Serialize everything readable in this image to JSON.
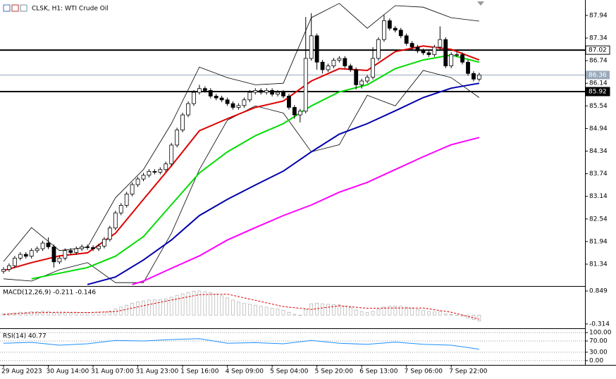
{
  "chart_data": {
    "type": "candlestick",
    "title": "CLSK, H1:  WTI Crude Oil",
    "categories": [
      "29 Aug 2023",
      null,
      null,
      null,
      null,
      null,
      null,
      null,
      "30 Aug 14:00",
      null,
      null,
      null,
      null,
      null,
      null,
      null,
      "31 Aug 07:00",
      null,
      null,
      null,
      null,
      null,
      null,
      null,
      "31 Aug 23:00",
      null,
      null,
      null,
      null,
      null,
      null,
      null,
      "1 Sep 16:00",
      null,
      null,
      null,
      null,
      null,
      null,
      null,
      "4 Sep 09:00",
      null,
      null,
      null,
      null,
      null,
      null,
      null,
      "5 Sep 04:00",
      null,
      null,
      null,
      null,
      null,
      null,
      null,
      "5 Sep 20:00",
      null,
      null,
      null,
      null,
      null,
      null,
      null,
      "6 Sep 13:00",
      null,
      null,
      null,
      null,
      null,
      null,
      null,
      "7 Sep 06:00",
      null,
      null,
      null,
      null,
      null,
      null,
      null,
      "7 Sep 22:00",
      null,
      null,
      null,
      null,
      null
    ],
    "open": [
      81.15,
      81.2,
      81.3,
      81.5,
      81.6,
      81.55,
      81.7,
      81.75,
      81.9,
      81.8,
      81.4,
      81.5,
      81.7,
      81.65,
      81.75,
      81.8,
      81.78,
      81.75,
      81.82,
      82.0,
      82.3,
      82.7,
      82.9,
      83.2,
      83.45,
      83.6,
      83.7,
      83.8,
      83.78,
      83.85,
      84.0,
      84.5,
      84.9,
      85.3,
      85.6,
      85.9,
      86.0,
      85.95,
      85.8,
      85.75,
      85.7,
      85.6,
      85.5,
      85.55,
      85.7,
      85.9,
      85.95,
      85.9,
      85.95,
      85.85,
      85.9,
      85.8,
      85.5,
      85.3,
      85.4,
      86.8,
      87.4,
      86.7,
      86.5,
      86.6,
      86.75,
      86.8,
      86.6,
      86.5,
      86.1,
      86.2,
      86.3,
      86.8,
      87.3,
      87.8,
      87.6,
      87.55,
      87.4,
      87.2,
      87.1,
      87.0,
      86.95,
      86.9,
      87.1,
      87.3,
      86.6,
      86.9,
      86.9,
      86.7,
      86.4,
      86.25
    ],
    "high": [
      81.26,
      81.36,
      81.56,
      81.66,
      81.66,
      81.76,
      81.81,
      81.96,
      82.05,
      81.86,
      81.56,
      81.76,
      81.76,
      81.81,
      81.86,
      81.86,
      81.84,
      81.88,
      82.06,
      82.36,
      82.76,
      82.96,
      83.26,
      83.51,
      83.66,
      83.76,
      83.86,
      83.86,
      83.91,
      84.06,
      84.56,
      84.96,
      85.36,
      85.66,
      85.96,
      86.1,
      86.06,
      86.01,
      85.86,
      85.81,
      85.76,
      85.66,
      85.61,
      85.76,
      85.96,
      86.01,
      86.01,
      86.01,
      86.01,
      85.96,
      85.96,
      85.86,
      85.56,
      85.46,
      87.9,
      88.0,
      87.46,
      86.76,
      86.66,
      86.81,
      86.86,
      86.86,
      86.66,
      86.56,
      86.26,
      86.36,
      87.1,
      87.36,
      87.95,
      87.86,
      87.66,
      87.61,
      87.46,
      87.26,
      87.16,
      87.06,
      87.01,
      87.16,
      87.65,
      87.36,
      86.96,
      86.96,
      86.96,
      86.76,
      86.46,
      86.42
    ],
    "low": [
      81.09,
      81.14,
      81.24,
      81.44,
      81.49,
      81.49,
      81.64,
      81.69,
      81.74,
      81.25,
      81.34,
      81.44,
      81.59,
      81.59,
      81.69,
      81.72,
      81.69,
      81.69,
      81.76,
      81.94,
      82.24,
      82.64,
      82.84,
      83.14,
      83.39,
      83.54,
      83.64,
      83.72,
      83.72,
      83.79,
      83.94,
      84.44,
      84.84,
      85.24,
      85.54,
      85.84,
      85.89,
      85.74,
      85.69,
      85.64,
      85.54,
      85.44,
      85.44,
      85.49,
      85.64,
      85.84,
      85.84,
      85.84,
      85.79,
      85.79,
      85.74,
      85.44,
      85.2,
      85.1,
      85.34,
      86.74,
      86.5,
      86.4,
      86.44,
      86.54,
      86.69,
      86.54,
      86.44,
      85.98,
      86.0,
      86.14,
      86.24,
      86.74,
      87.24,
      87.54,
      87.49,
      87.34,
      87.14,
      87.04,
      86.94,
      86.89,
      86.84,
      86.84,
      87.04,
      86.54,
      86.54,
      86.84,
      86.64,
      86.34,
      86.19,
      86.19
    ],
    "close": [
      81.2,
      81.3,
      81.5,
      81.6,
      81.55,
      81.7,
      81.75,
      81.9,
      81.8,
      81.4,
      81.5,
      81.7,
      81.65,
      81.75,
      81.8,
      81.78,
      81.75,
      81.82,
      82.0,
      82.3,
      82.7,
      82.9,
      83.2,
      83.45,
      83.6,
      83.7,
      83.8,
      83.78,
      83.85,
      84.0,
      84.5,
      84.9,
      85.3,
      85.6,
      85.9,
      86.0,
      85.95,
      85.8,
      85.75,
      85.7,
      85.6,
      85.5,
      85.55,
      85.7,
      85.9,
      85.95,
      85.9,
      85.95,
      85.85,
      85.9,
      85.8,
      85.5,
      85.3,
      85.4,
      86.8,
      87.4,
      86.7,
      86.5,
      86.6,
      86.75,
      86.8,
      86.6,
      86.5,
      86.1,
      86.2,
      86.3,
      86.8,
      87.3,
      87.8,
      87.6,
      87.55,
      87.4,
      87.2,
      87.1,
      87.0,
      86.95,
      86.9,
      87.1,
      87.3,
      86.6,
      86.9,
      86.9,
      86.7,
      86.4,
      86.25,
      86.36
    ],
    "series": [
      {
        "color": "#000000",
        "x": [
          0,
          5,
          10,
          15,
          20,
          25,
          30,
          35,
          40,
          45,
          50,
          55,
          60,
          65,
          70,
          75,
          80,
          85
        ],
        "values": [
          81.41,
          82.31,
          81.7,
          81.79,
          83.1,
          83.85,
          85.07,
          86.57,
          86.29,
          86.1,
          86.14,
          87.88,
          88.26,
          87.6,
          88.2,
          88.16,
          87.88,
          87.79
        ]
      },
      {
        "color": "#000000",
        "x": [
          0,
          5,
          10,
          15,
          20,
          25,
          30,
          35,
          40,
          45,
          50,
          55,
          60,
          65,
          70,
          75,
          80,
          85
        ],
        "values": [
          80.95,
          80.89,
          81.19,
          81.38,
          80.85,
          80.85,
          82.16,
          83.85,
          85.16,
          85.54,
          85.35,
          84.32,
          84.51,
          85.82,
          85.54,
          86.48,
          86.29,
          85.76
        ]
      },
      {
        "color": "#ff00ff",
        "x": [
          23,
          25,
          30,
          35,
          40,
          45,
          50,
          55,
          60,
          65,
          70,
          75,
          80,
          85
        ],
        "values": [
          80.8,
          80.89,
          81.23,
          81.56,
          81.98,
          82.31,
          82.63,
          82.91,
          83.25,
          83.51,
          83.85,
          84.19,
          84.51,
          84.7
        ]
      },
      {
        "color": "#0000aa",
        "x": [
          15,
          20,
          25,
          30,
          35,
          40,
          45,
          50,
          55,
          60,
          65,
          70,
          75,
          80,
          85
        ],
        "values": [
          80.8,
          81.0,
          81.45,
          81.98,
          82.63,
          83.06,
          83.44,
          83.81,
          84.32,
          84.79,
          85.07,
          85.41,
          85.76,
          86.01,
          86.14
        ]
      },
      {
        "color": "#00dd00",
        "x": [
          5,
          10,
          15,
          20,
          25,
          30,
          35,
          40,
          45,
          50,
          55,
          60,
          65,
          70,
          75,
          80,
          85
        ],
        "values": [
          80.95,
          81.1,
          81.25,
          81.55,
          82.07,
          82.92,
          83.76,
          84.32,
          84.75,
          85.07,
          85.54,
          85.91,
          86.1,
          86.53,
          86.76,
          86.89,
          86.7
        ]
      },
      {
        "color": "#dd0000",
        "x": [
          0,
          5,
          10,
          15,
          20,
          25,
          30,
          35,
          40,
          45,
          50,
          55,
          60,
          65,
          70,
          75,
          80,
          85
        ],
        "values": [
          81.17,
          81.38,
          81.56,
          81.64,
          82.16,
          83.06,
          83.95,
          84.88,
          85.2,
          85.5,
          85.67,
          86.2,
          86.53,
          86.48,
          86.98,
          87.13,
          87.04,
          86.76
        ]
      }
    ],
    "levels": [
      87.02,
      85.92
    ],
    "current_price": 86.36,
    "ylim": [
      80.76,
      88.35
    ],
    "yticks": [
      87.94,
      87.34,
      86.74,
      86.14,
      85.54,
      84.94,
      84.34,
      83.74,
      83.14,
      82.54,
      81.94,
      81.34
    ],
    "macd": {
      "title": "MACD(12,26,9) -0.211 -0.146",
      "values": [
        0.05,
        0.06,
        0.08,
        0.1,
        0.1,
        0.12,
        0.12,
        0.14,
        0.13,
        0.08,
        0.07,
        0.08,
        0.08,
        0.09,
        0.09,
        0.09,
        0.09,
        0.09,
        0.11,
        0.15,
        0.22,
        0.28,
        0.35,
        0.42,
        0.47,
        0.5,
        0.53,
        0.54,
        0.55,
        0.57,
        0.63,
        0.69,
        0.75,
        0.8,
        0.84,
        0.85,
        0.83,
        0.79,
        0.74,
        0.68,
        0.61,
        0.53,
        0.46,
        0.41,
        0.38,
        0.35,
        0.31,
        0.28,
        0.24,
        0.21,
        0.17,
        0.1,
        0.03,
        0.0,
        0.2,
        0.4,
        0.42,
        0.4,
        0.38,
        0.37,
        0.36,
        0.32,
        0.27,
        0.18,
        0.12,
        0.09,
        0.13,
        0.2,
        0.28,
        0.31,
        0.32,
        0.31,
        0.28,
        0.24,
        0.2,
        0.16,
        0.12,
        0.11,
        0.12,
        0.04,
        0.02,
        0.0,
        -0.04,
        -0.1,
        -0.16,
        -0.211
      ],
      "signal": {
        "color": "#dd0000",
        "x": [
          0,
          5,
          10,
          15,
          20,
          25,
          30,
          35,
          40,
          45,
          50,
          55,
          60,
          65,
          70,
          75,
          80,
          85
        ],
        "values": [
          0.02,
          0.08,
          0.1,
          0.09,
          0.12,
          0.33,
          0.53,
          0.72,
          0.74,
          0.52,
          0.3,
          0.2,
          0.33,
          0.24,
          0.25,
          0.25,
          0.1,
          -0.146
        ]
      },
      "ylim": [
        -0.466,
        1.0
      ],
      "yticks": [
        0.849,
        -0.314
      ]
    },
    "rsi": {
      "title": "RSI(14) 40.77",
      "color": "#1e90ff",
      "x": [
        0,
        5,
        10,
        15,
        20,
        25,
        30,
        35,
        40,
        45,
        50,
        55,
        60,
        65,
        70,
        75,
        80,
        85
      ],
      "values": [
        62,
        65,
        55,
        60,
        72,
        70,
        75,
        78,
        62,
        64,
        60,
        72,
        62,
        58,
        66,
        58,
        55,
        40.77
      ],
      "ylim": [
        -15.4,
        112.8
      ],
      "yticks": [
        {
          "value": 100,
          "label": "100.00"
        },
        {
          "value": 70,
          "label": "70.00"
        },
        {
          "value": 30,
          "label": "30.00"
        },
        {
          "value": 0,
          "label": "0.00"
        }
      ],
      "grid": true
    }
  }
}
